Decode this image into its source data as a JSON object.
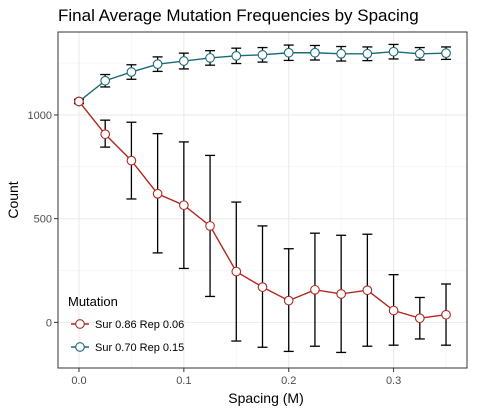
{
  "chart_data": {
    "type": "line",
    "title": "Final Average Mutation Frequencies by Spacing",
    "xlabel": "Spacing (M)",
    "ylabel": "Count",
    "xlim": [
      -0.02,
      0.37
    ],
    "ylim": [
      -220,
      1400
    ],
    "x_ticks": [
      0.0,
      0.1,
      0.2,
      0.3
    ],
    "x_tick_labels": [
      "0.0",
      "0.1",
      "0.2",
      "0.3"
    ],
    "y_ticks": [
      0,
      500,
      1000
    ],
    "y_tick_labels": [
      "0",
      "500",
      "1000"
    ],
    "grid": true,
    "legend": {
      "title": "Mutation",
      "position": "bottom-left"
    },
    "x": [
      0.0,
      0.025,
      0.05,
      0.075,
      0.1,
      0.125,
      0.15,
      0.175,
      0.2,
      0.225,
      0.25,
      0.275,
      0.3,
      0.325,
      0.35
    ],
    "series": [
      {
        "name": "Sur 0.86 Rep 0.06",
        "color": "#b2271f",
        "values": [
          1065,
          907,
          780,
          620,
          565,
          465,
          245,
          170,
          105,
          157,
          137,
          155,
          57,
          20,
          37
        ],
        "err_low": [
          1055,
          845,
          595,
          335,
          260,
          125,
          -90,
          -120,
          -140,
          -115,
          -145,
          -115,
          -110,
          -80,
          -110
        ],
        "err_high": [
          1075,
          975,
          965,
          910,
          870,
          805,
          580,
          465,
          355,
          430,
          420,
          425,
          230,
          120,
          185
        ]
      },
      {
        "name": "Sur 0.70 Rep 0.15",
        "color": "#1b6b77",
        "values": [
          1065,
          1165,
          1207,
          1245,
          1260,
          1275,
          1285,
          1290,
          1300,
          1300,
          1295,
          1295,
          1305,
          1295,
          1298
        ],
        "err_low": [
          1055,
          1135,
          1172,
          1210,
          1222,
          1240,
          1248,
          1255,
          1263,
          1265,
          1260,
          1262,
          1270,
          1265,
          1268
        ],
        "err_high": [
          1075,
          1195,
          1242,
          1280,
          1298,
          1310,
          1322,
          1325,
          1337,
          1335,
          1330,
          1328,
          1340,
          1325,
          1328
        ]
      }
    ]
  }
}
